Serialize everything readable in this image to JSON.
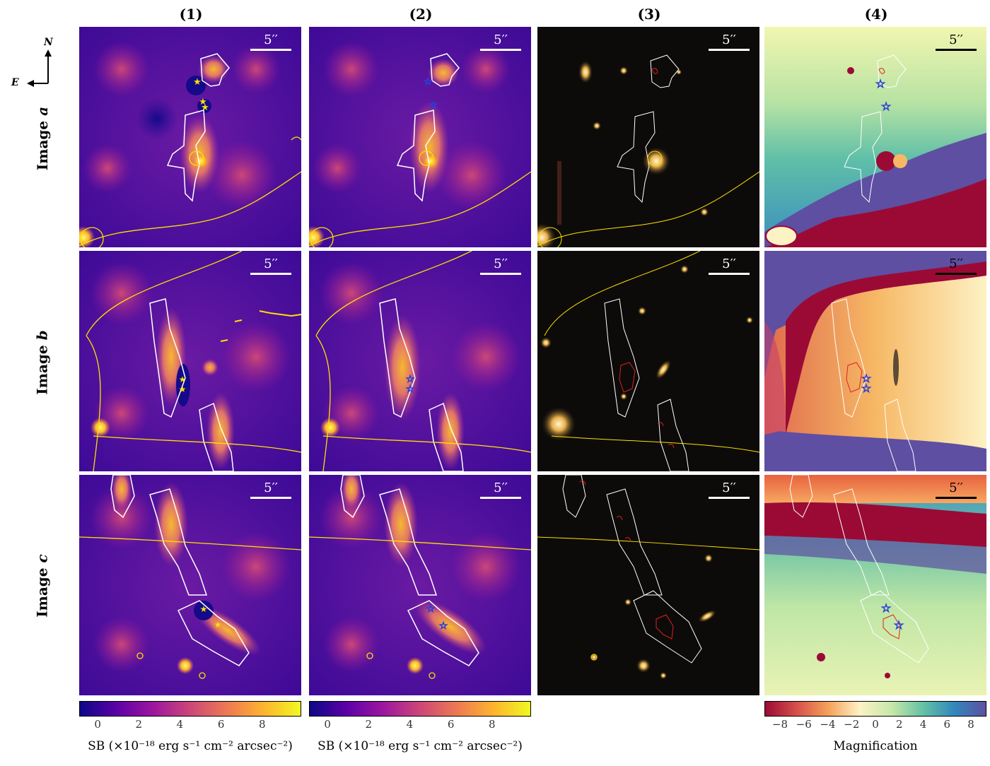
{
  "columns": [
    "(1)",
    "(2)",
    "(3)",
    "(4)"
  ],
  "rows": [
    {
      "prefix": "Image",
      "letter": "a"
    },
    {
      "prefix": "Image",
      "letter": "b"
    },
    {
      "prefix": "Image",
      "letter": "c"
    }
  ],
  "compass": {
    "north": "N",
    "east": "E"
  },
  "scalebar_label": "5′′",
  "colorbars": [
    {
      "ticks": [
        "0",
        "2",
        "4",
        "6",
        "8"
      ],
      "tick_values": [
        0,
        2,
        4,
        6,
        8
      ],
      "range": [
        -0.9,
        9.9
      ],
      "label": "SB (×10⁻¹⁸ erg s⁻¹ cm⁻² arcsec⁻²)"
    },
    {
      "ticks": [
        "0",
        "2",
        "4",
        "6",
        "8"
      ],
      "tick_values": [
        0,
        2,
        4,
        6,
        8
      ],
      "range": [
        -0.9,
        9.9
      ],
      "label": "SB (×10⁻¹⁸ erg s⁻¹ cm⁻² arcsec⁻²)"
    },
    {
      "ticks": [
        "−8",
        "−6",
        "−4",
        "−2",
        "0",
        "2",
        "4",
        "6",
        "8"
      ],
      "tick_values": [
        -8,
        -6,
        -4,
        -2,
        0,
        2,
        4,
        6,
        8
      ],
      "range": [
        -9.3,
        9.3
      ],
      "label": "Magnification"
    }
  ],
  "colors": {
    "plasma": [
      "#0d0887",
      "#5c01a6",
      "#9c179e",
      "#cc4778",
      "#ed7953",
      "#fdb42f",
      "#f0f921"
    ],
    "magnification": [
      "#9b0a35",
      "#d6504a",
      "#f4a259",
      "#fdf2c4",
      "#c7e8a9",
      "#65c2a5",
      "#3287bd",
      "#5e4fa2"
    ],
    "contour_white": "#ffffff",
    "contour_red": "#e02020",
    "critical_curve": "#ffe000",
    "star": "#2a3fd8"
  }
}
